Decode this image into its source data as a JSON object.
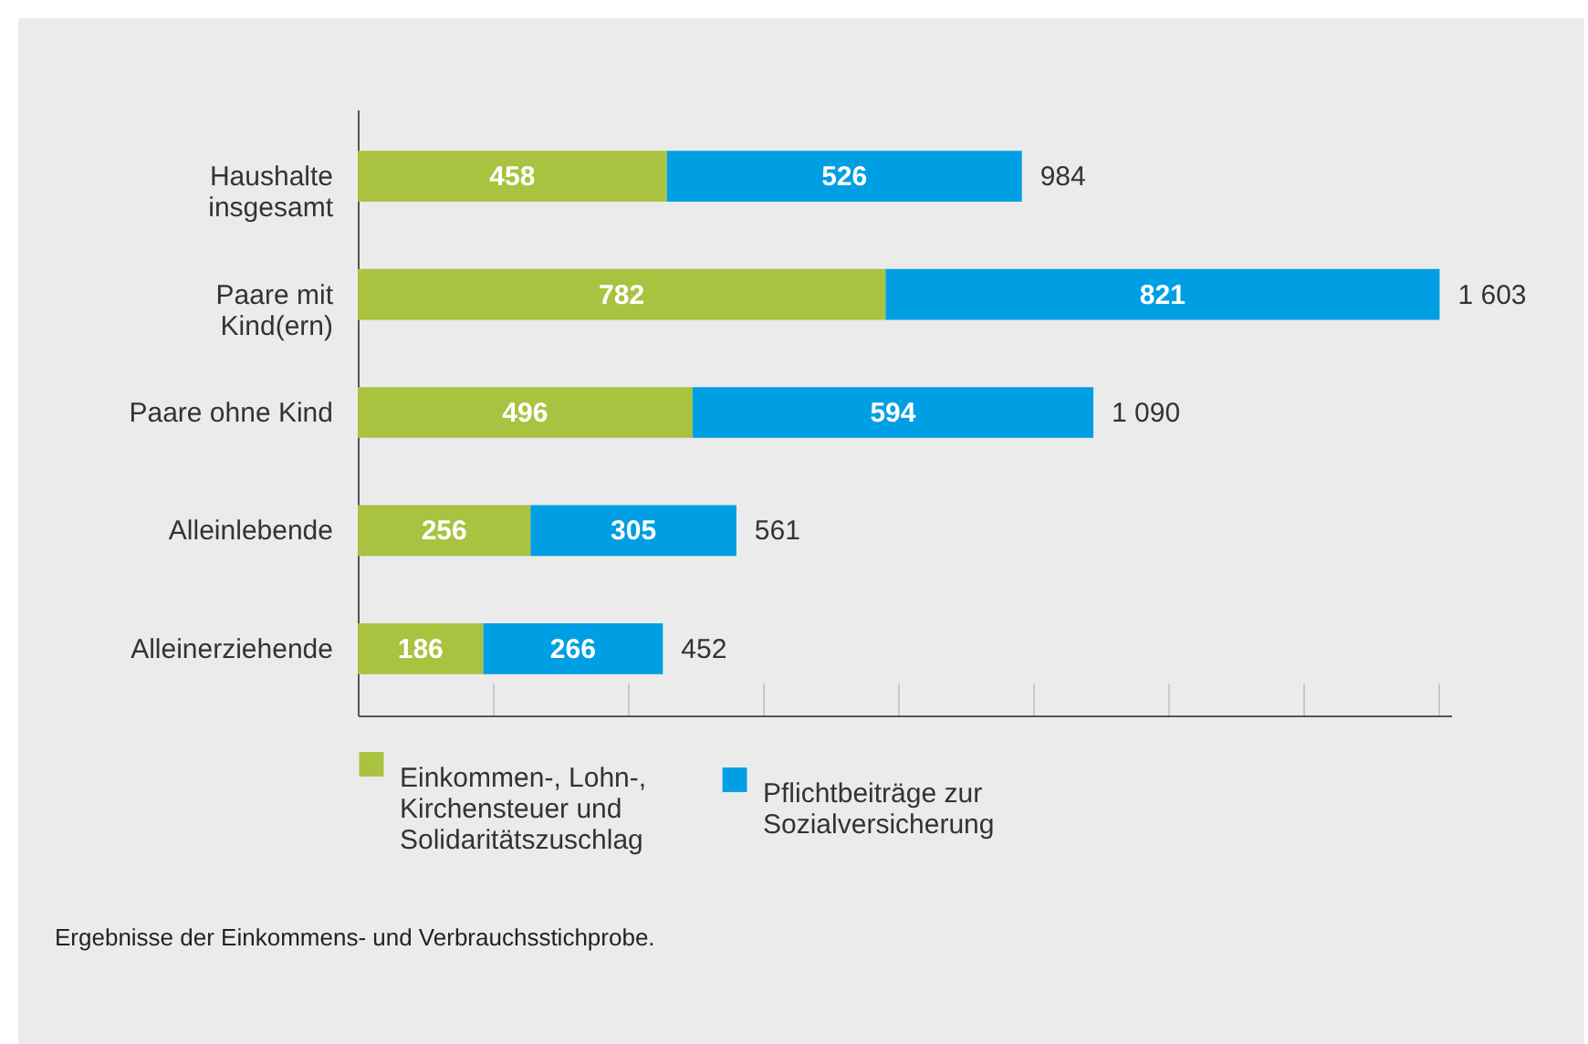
{
  "chart_data": {
    "type": "bar",
    "orientation": "horizontal",
    "stacked": true,
    "categories": [
      "Haushalte insgesamt",
      "Paare mit Kind(ern)",
      "Paare ohne Kind",
      "Alleinlebende",
      "Alleinerziehende"
    ],
    "series": [
      {
        "name": "Einkommen-, Lohn-, Kirchensteuer und Solidaritätszuschlag",
        "color": "#a9c23f",
        "values": [
          458,
          782,
          496,
          256,
          186
        ]
      },
      {
        "name": "Pflichtbeiträge zur Sozialversicherung",
        "color": "#009fe3",
        "values": [
          526,
          821,
          594,
          305,
          266
        ]
      }
    ],
    "data_labels": true,
    "totals": [
      "984",
      "1 603",
      "1 090",
      "561",
      "452"
    ],
    "xlim": [
      0,
      1620
    ],
    "tick_labels": "y",
    "grid": false,
    "legend": "bottom",
    "annotations": [
      "Ergebnisse der Einkommens- und Verbrauchsstichprobe."
    ]
  }
}
